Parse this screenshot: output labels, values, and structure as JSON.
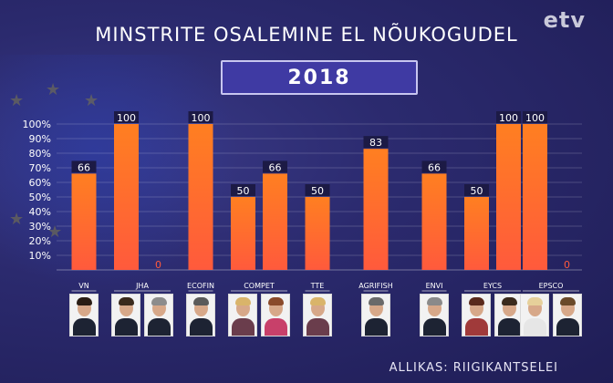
{
  "logo": "etv",
  "title": "MINSTRITE OSALEMINE EL NÕUKOGUDEL",
  "year": "2018",
  "source": "ALLIKAS: RIIGIKANTSELEI",
  "colors": {
    "bar_top": "#ff7f21",
    "bar_bottom": "#ff5a3c",
    "zero_label": "#ff5a3c",
    "label_bg": "#1c1a45",
    "tick": "#ffffff"
  },
  "chart_data": {
    "type": "bar",
    "title": "MINSTRITE OSALEMINE EL NÕUKOGUDEL",
    "yticks": [
      "10%",
      "20%",
      "30%",
      "40%",
      "50%",
      "60%",
      "70%",
      "80%",
      "90%",
      "100%"
    ],
    "ylim": [
      0,
      100
    ],
    "grid": true,
    "groups": [
      {
        "label": "VN",
        "values": [
          66
        ]
      },
      {
        "label": "JHA",
        "values": [
          100,
          0
        ]
      },
      {
        "label": "ECOFIN",
        "values": [
          100
        ]
      },
      {
        "label": "COMPET",
        "values": [
          50,
          66
        ]
      },
      {
        "label": "TTE",
        "values": [
          50
        ]
      },
      {
        "label": "AGRIFISH",
        "values": [
          83
        ]
      },
      {
        "label": "ENVI",
        "values": [
          66
        ]
      },
      {
        "label": "EYCS",
        "values": [
          50,
          100
        ]
      },
      {
        "label": "EPSCO",
        "values": [
          100,
          0
        ]
      }
    ]
  },
  "photos": [
    {
      "hair": "#2a1d14",
      "body": "#1d2333"
    },
    {
      "hair": "#3a2a1c",
      "body": "#1d2333"
    },
    {
      "hair": "#8c8c8c",
      "body": "#1d2333"
    },
    {
      "hair": "#5a5a5a",
      "body": "#1d2333"
    },
    {
      "hair": "#d9b46a",
      "body": "#6a3d4c"
    },
    {
      "hair": "#8a4a2a",
      "body": "#c8406a"
    },
    {
      "hair": "#d9b46a",
      "body": "#6a3d4c"
    },
    {
      "hair": "#6a6a6a",
      "body": "#1d2333"
    },
    {
      "hair": "#8a8a8a",
      "body": "#1d2333"
    },
    {
      "hair": "#5a2a1c",
      "body": "#a03a3a"
    },
    {
      "hair": "#3a2a1c",
      "body": "#1d2333"
    },
    {
      "hair": "#e6d09a",
      "body": "#e6e6e6"
    },
    {
      "hair": "#6a4a2a",
      "body": "#1d2333"
    }
  ]
}
